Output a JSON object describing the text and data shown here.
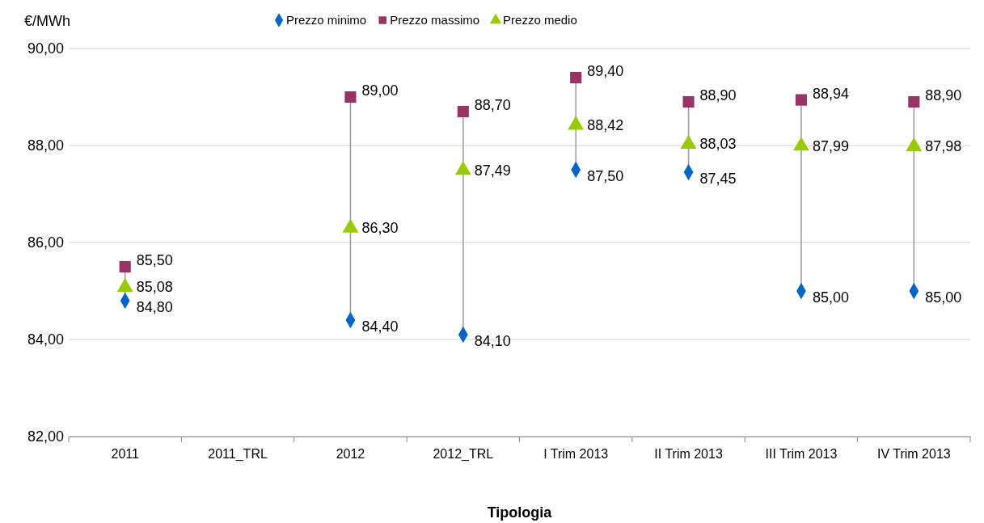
{
  "chart_data": {
    "type": "scatter",
    "ylabel": "€/MWh",
    "xlabel": "Tipologia",
    "categories": [
      "2011",
      "2011_TRL",
      "2012",
      "2012_TRL",
      "I Trim 2013",
      "II Trim 2013",
      "III Trim 2013",
      "IV Trim 2013"
    ],
    "series": [
      {
        "name": "Prezzo minimo",
        "color": "#0066cc",
        "marker": "diamond",
        "values": [
          84.8,
          null,
          84.4,
          84.1,
          87.5,
          87.45,
          85.0,
          85.0
        ],
        "value_labels": [
          "84,80",
          null,
          "84,40",
          "84,10",
          "87,50",
          "87,45",
          "85,00",
          "85,00"
        ]
      },
      {
        "name": "Prezzo massimo",
        "color": "#993366",
        "marker": "square",
        "values": [
          85.5,
          null,
          89.0,
          88.7,
          89.4,
          88.9,
          88.94,
          88.9
        ],
        "value_labels": [
          "85,50",
          null,
          "89,00",
          "88,70",
          "89,40",
          "88,90",
          "88,94",
          "88,90"
        ]
      },
      {
        "name": "Prezzo medio",
        "color": "#99cc00",
        "marker": "triangle",
        "values": [
          85.08,
          null,
          86.3,
          87.49,
          88.42,
          88.03,
          87.99,
          87.98
        ],
        "value_labels": [
          "85,08",
          null,
          "86,30",
          "87,49",
          "88,42",
          "88,03",
          "87,99",
          "87,98"
        ]
      }
    ],
    "ylim": [
      82,
      90
    ],
    "yticks": [
      {
        "value": 82,
        "label": "82,00"
      },
      {
        "value": 84,
        "label": "84,00"
      },
      {
        "value": 86,
        "label": "86,00"
      },
      {
        "value": 88,
        "label": "88,00"
      },
      {
        "value": 90,
        "label": "90,00"
      }
    ],
    "grid": "y",
    "legend": "top"
  }
}
